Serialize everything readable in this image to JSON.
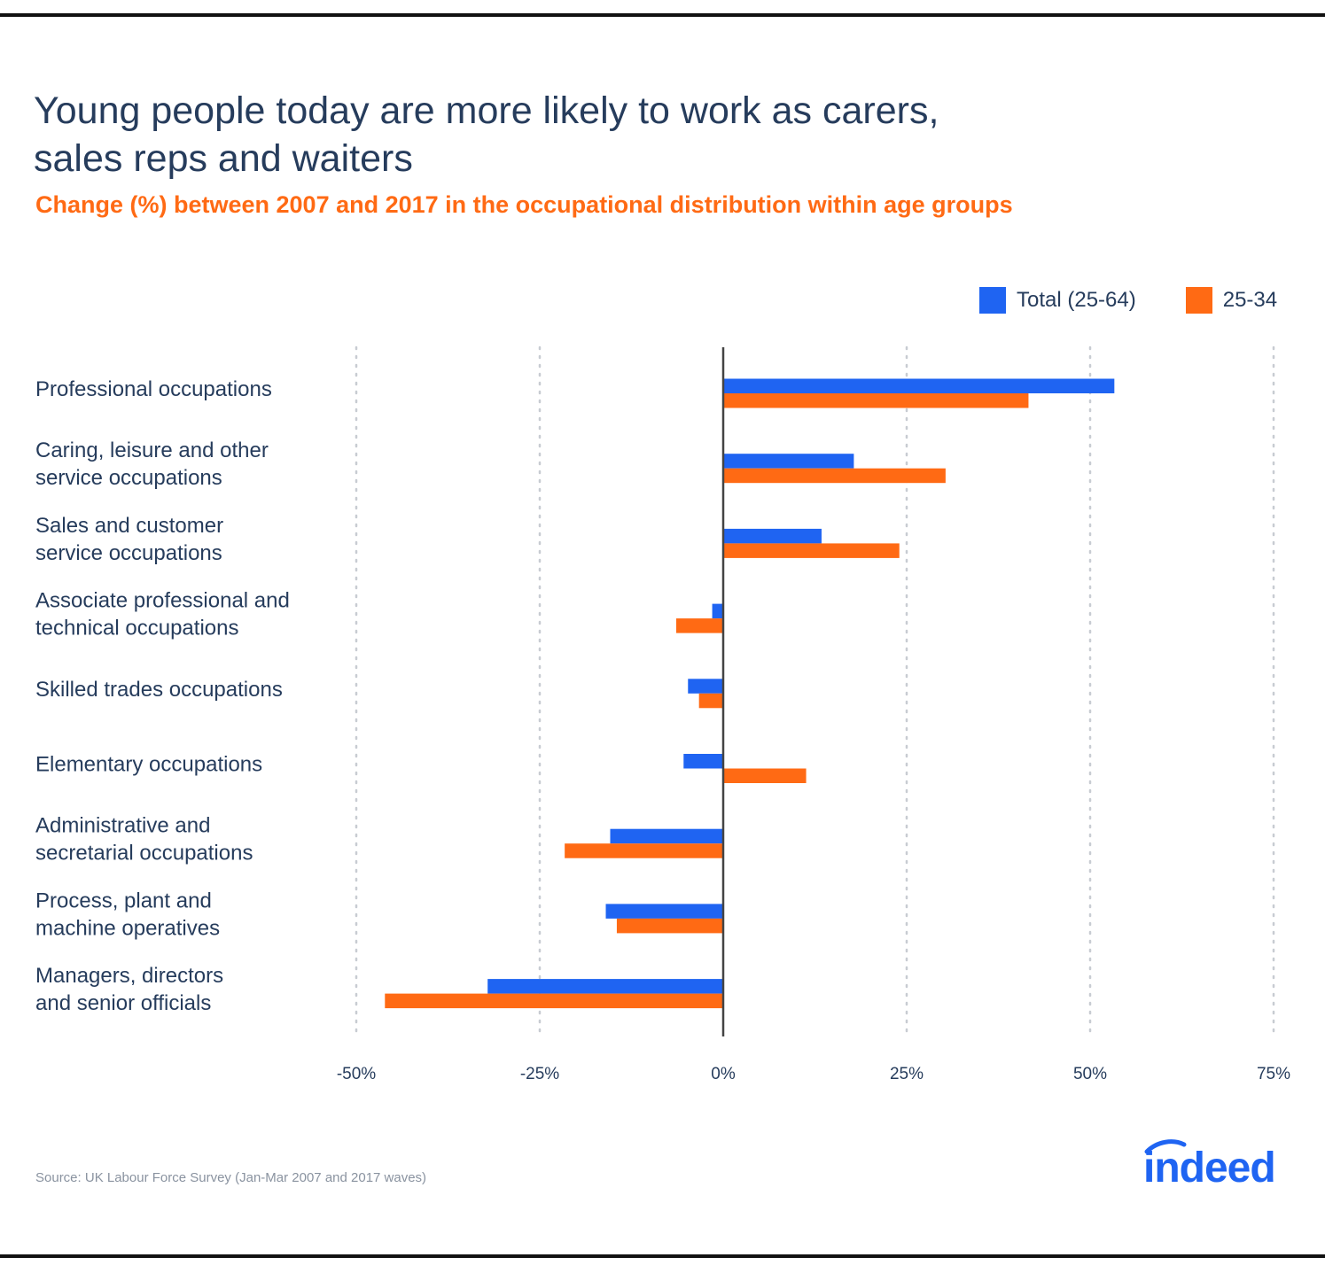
{
  "title_line1": "Young people today are more likely to work as carers,",
  "title_line2": "sales reps and waiters",
  "subtitle": "Change (%) between 2007 and 2017 in the occupational distribution within age groups",
  "source": "Source: UK Labour Force Survey (Jan-Mar 2007 and 2017 waves)",
  "logo_text": "indeed",
  "colors": {
    "total": "#1f64f2",
    "young": "#ff6a14",
    "text": "#263c5c",
    "accent": "#ff6a14"
  },
  "chart_data": {
    "type": "bar",
    "orientation": "horizontal",
    "categories": [
      [
        "Professional occupations"
      ],
      [
        "Caring, leisure and other",
        "service occupations"
      ],
      [
        "Sales and customer",
        "service occupations"
      ],
      [
        "Associate professional and",
        "technical occupations"
      ],
      [
        "Skilled trades occupations"
      ],
      [
        "Elementary occupations"
      ],
      [
        "Administrative and",
        "secretarial occupations"
      ],
      [
        "Process, plant and",
        "machine operatives"
      ],
      [
        "Managers, directors",
        "and senior officials"
      ]
    ],
    "series": [
      {
        "name": "Total (25-64)",
        "values": [
          53.3,
          17.8,
          13.4,
          -1.5,
          -4.8,
          -5.4,
          -15.4,
          -16.0,
          -32.1
        ]
      },
      {
        "name": "25-34",
        "values": [
          41.6,
          30.3,
          24.0,
          -6.4,
          -3.3,
          11.3,
          -21.6,
          -14.5,
          -46.1
        ]
      }
    ],
    "xticks": [
      -50,
      -25,
      0,
      25,
      50,
      75
    ],
    "xtick_labels": [
      "-50%",
      "-25%",
      "0%",
      "25%",
      "50%",
      "75%"
    ],
    "xlim": [
      -50,
      75
    ],
    "grid": true,
    "legend_position": "top-right"
  }
}
